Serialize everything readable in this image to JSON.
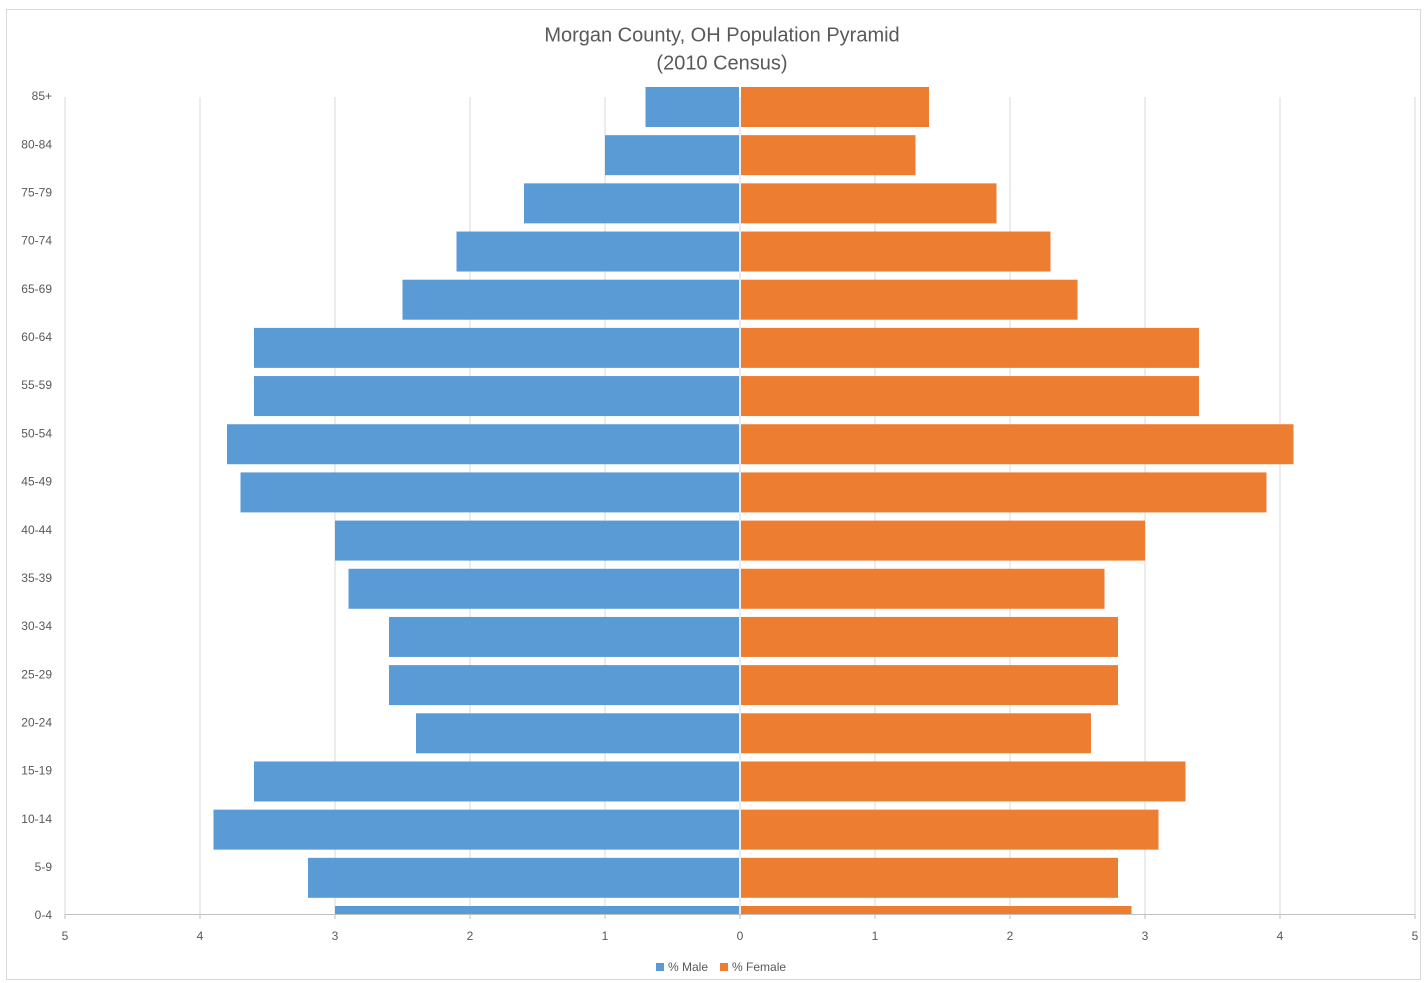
{
  "chart_data": {
    "type": "pyramid",
    "title": "Morgan County, OH Population Pyramid",
    "subtitle": "(2010 Census)",
    "categories": [
      "0-4",
      "5-9",
      "10-14",
      "15-19",
      "20-24",
      "25-29",
      "30-34",
      "35-39",
      "40-44",
      "45-49",
      "50-54",
      "55-59",
      "60-64",
      "65-69",
      "70-74",
      "75-79",
      "80-84",
      "85+"
    ],
    "series": [
      {
        "name": "% Male",
        "color": "#5b9bd5",
        "values": [
          -3.0,
          -3.2,
          -3.9,
          -3.6,
          -2.4,
          -2.6,
          -2.6,
          -2.9,
          -3.0,
          -3.7,
          -3.8,
          -3.6,
          -3.6,
          -2.5,
          -2.1,
          -1.6,
          -1.0,
          -0.7
        ]
      },
      {
        "name": "% Female",
        "color": "#ed7d31",
        "values": [
          2.9,
          2.8,
          3.1,
          3.3,
          2.6,
          2.8,
          2.8,
          2.7,
          3.0,
          3.9,
          4.1,
          3.4,
          3.4,
          2.5,
          2.3,
          1.9,
          1.3,
          1.4
        ]
      }
    ],
    "xlim": [
      -5,
      5
    ],
    "xticks": [
      {
        "value": -5,
        "label": "5"
      },
      {
        "value": -4,
        "label": "4"
      },
      {
        "value": -3,
        "label": "3"
      },
      {
        "value": -2,
        "label": "2"
      },
      {
        "value": -1,
        "label": "1"
      },
      0,
      1,
      2,
      3,
      4,
      5
    ],
    "grid": true,
    "legend": "bottom"
  }
}
